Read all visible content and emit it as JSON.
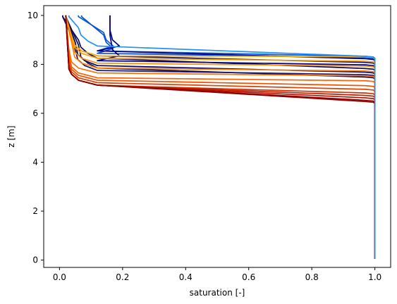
{
  "chart_data": {
    "type": "line",
    "title": "",
    "xlabel": "saturation [-]",
    "ylabel": "z [m]",
    "xlim": [
      -0.05,
      1.05
    ],
    "ylim": [
      -0.3,
      10.4
    ],
    "xticks": [
      "0.0",
      "0.2",
      "0.4",
      "0.6",
      "0.8",
      "1.0"
    ],
    "yticks": [
      "0",
      "2",
      "4",
      "6",
      "8",
      "10"
    ],
    "grid": false,
    "legend": "none",
    "series": [
      {
        "color": "#0b5fd0",
        "s_top": 0.06,
        "kink_z": 9.3,
        "front_s": 0.14,
        "front_z": 9.0,
        "knee_z": 8.3
      },
      {
        "color": "#0a4fd2",
        "s_top": 0.07,
        "kink_z": 9.2,
        "front_s": 0.14,
        "front_z": 8.9,
        "knee_z": 8.25
      },
      {
        "color": "#000080",
        "s_top": 0.16,
        "kink_z": 9.4,
        "front_s": 0.16,
        "front_z": 9.0,
        "knee_z": 8.2
      },
      {
        "color": "#00008b",
        "s_top": 0.16,
        "kink_z": 9.2,
        "front_s": 0.16,
        "front_z": 8.6,
        "knee_z": 7.95
      },
      {
        "color": "#101070",
        "s_top": 0.01,
        "kink_z": 9.1,
        "front_s": 0.04,
        "front_z": 8.8,
        "knee_z": 8.05
      },
      {
        "color": "#0a0a60",
        "s_top": 0.01,
        "kink_z": 9.0,
        "front_s": 0.06,
        "front_z": 8.7,
        "knee_z": 7.8
      },
      {
        "color": "#000070",
        "s_top": 0.02,
        "kink_z": 8.9,
        "front_s": 0.05,
        "front_z": 8.4,
        "knee_z": 7.65
      },
      {
        "color": "#0d0d50",
        "s_top": 0.02,
        "kink_z": 8.8,
        "front_s": 0.06,
        "front_z": 8.3,
        "knee_z": 7.45
      },
      {
        "color": "#1a1a70",
        "s_top": 0.02,
        "kink_z": 8.6,
        "front_s": 0.05,
        "front_z": 8.2,
        "knee_z": 7.55
      },
      {
        "color": "#ffb000",
        "s_top": 0.02,
        "kink_z": 9.1,
        "front_s": 0.04,
        "front_z": 8.8,
        "knee_z": 8.28
      },
      {
        "color": "#ffa000",
        "s_top": 0.02,
        "kink_z": 9.0,
        "front_s": 0.04,
        "front_z": 8.7,
        "knee_z": 8.1
      },
      {
        "color": "#ff9000",
        "s_top": 0.02,
        "kink_z": 8.9,
        "front_s": 0.04,
        "front_z": 8.5,
        "knee_z": 7.9
      },
      {
        "color": "#ff8000",
        "s_top": 0.02,
        "kink_z": 8.8,
        "front_s": 0.04,
        "front_z": 8.3,
        "knee_z": 7.7
      },
      {
        "color": "#ff7000",
        "s_top": 0.02,
        "kink_z": 8.6,
        "front_s": 0.03,
        "front_z": 8.1,
        "knee_z": 7.5
      },
      {
        "color": "#ff6000",
        "s_top": 0.02,
        "kink_z": 8.4,
        "front_s": 0.03,
        "front_z": 7.9,
        "knee_z": 7.3
      },
      {
        "color": "#f05000",
        "s_top": 0.02,
        "kink_z": 8.2,
        "front_s": 0.03,
        "front_z": 7.8,
        "knee_z": 7.1
      },
      {
        "color": "#e04000",
        "s_top": 0.02,
        "kink_z": 8.0,
        "front_s": 0.03,
        "front_z": 7.7,
        "knee_z": 6.95
      },
      {
        "color": "#d03000",
        "s_top": 0.02,
        "kink_z": 7.9,
        "front_s": 0.03,
        "front_z": 7.6,
        "knee_z": 6.8
      },
      {
        "color": "#c02000",
        "s_top": 0.02,
        "kink_z": 7.8,
        "front_s": 0.03,
        "front_z": 7.6,
        "knee_z": 6.7
      },
      {
        "color": "#b01000",
        "s_top": 0.02,
        "kink_z": 7.8,
        "front_s": 0.03,
        "front_z": 7.6,
        "knee_z": 6.6
      },
      {
        "color": "#a00000",
        "s_top": 0.02,
        "kink_z": 7.8,
        "front_s": 0.03,
        "front_z": 7.6,
        "knee_z": 6.5
      },
      {
        "color": "#8b0000",
        "s_top": 0.02,
        "kink_z": 7.8,
        "front_s": 0.03,
        "front_z": 7.6,
        "knee_z": 6.45
      },
      {
        "color": "#1e90ff",
        "s_top": 0.03,
        "kink_z": 9.5,
        "front_s": 0.06,
        "front_z": 9.2,
        "knee_z": 8.3
      }
    ]
  }
}
